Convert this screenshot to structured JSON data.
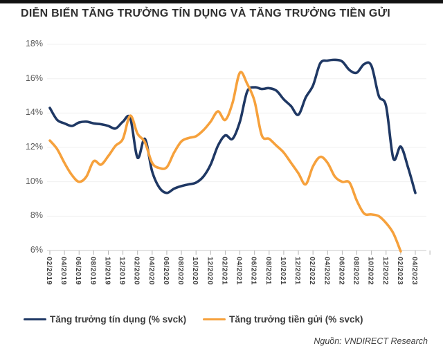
{
  "page": {
    "title": "DIỄN BIẾN TĂNG TRƯỞNG TÍN DỤNG VÀ TĂNG TRƯỞNG TIỀN GỬI",
    "source": "Nguồn: VNDIRECT Research"
  },
  "chart_data": {
    "type": "line",
    "smoothed": true,
    "grid": true,
    "legend_position": "bottom",
    "y_axis": {
      "min": 6,
      "max": 18,
      "step": 2,
      "unit": "%"
    },
    "x_monthly": [
      "02/2019",
      "03/2019",
      "04/2019",
      "05/2019",
      "06/2019",
      "07/2019",
      "08/2019",
      "09/2019",
      "10/2019",
      "11/2019",
      "12/2019",
      "01/2020",
      "02/2020",
      "03/2020",
      "04/2020",
      "05/2020",
      "06/2020",
      "07/2020",
      "08/2020",
      "09/2020",
      "10/2020",
      "11/2020",
      "12/2020",
      "01/2021",
      "02/2021",
      "03/2021",
      "04/2021",
      "05/2021",
      "06/2021",
      "07/2021",
      "08/2021",
      "09/2021",
      "10/2021",
      "11/2021",
      "12/2021",
      "01/2022",
      "02/2022",
      "03/2022",
      "04/2022",
      "05/2022",
      "06/2022",
      "07/2022",
      "08/2022",
      "09/2022",
      "10/2022",
      "11/2022",
      "12/2022",
      "01/2023",
      "02/2023",
      "03/2023",
      "04/2023"
    ],
    "tick_labels": [
      "02/2019",
      "04/2019",
      "06/2019",
      "08/2019",
      "10/2019",
      "12/2019",
      "02/2020",
      "04/2020",
      "06/2020",
      "08/2020",
      "10/2020",
      "12/2020",
      "02/2021",
      "04/2021",
      "06/2021",
      "08/2021",
      "10/2021",
      "12/2021",
      "02/2022",
      "04/2022",
      "06/2022",
      "08/2022",
      "10/2022",
      "12/2022",
      "02/2023",
      "04/2023"
    ],
    "series": [
      {
        "name": "Tăng trưởng tín dụng (% svck)",
        "color": "#1F3864",
        "values": [
          14.3,
          13.6,
          13.4,
          13.25,
          13.45,
          13.5,
          13.4,
          13.35,
          13.25,
          13.1,
          13.5,
          13.7,
          11.4,
          12.5,
          10.6,
          9.65,
          9.35,
          9.6,
          9.75,
          9.85,
          9.95,
          10.3,
          11.0,
          12.1,
          12.7,
          12.5,
          13.5,
          15.25,
          15.5,
          15.4,
          15.45,
          15.3,
          14.8,
          14.4,
          13.9,
          14.9,
          15.6,
          16.9,
          17.05,
          17.1,
          17.0,
          16.5,
          16.35,
          16.85,
          16.75,
          15.0,
          14.4,
          11.35,
          12.05,
          10.85,
          9.35
        ]
      },
      {
        "name": "Tăng trưởng tiền gửi (% svck)",
        "color": "#F6A13C",
        "values": [
          12.4,
          11.9,
          11.1,
          10.4,
          10.0,
          10.3,
          11.2,
          11.0,
          11.5,
          12.1,
          12.5,
          13.85,
          12.8,
          12.3,
          11.1,
          10.8,
          10.85,
          11.7,
          12.35,
          12.55,
          12.65,
          13.0,
          13.5,
          14.1,
          13.6,
          14.6,
          16.35,
          15.7,
          14.7,
          12.7,
          12.5,
          12.1,
          11.7,
          11.1,
          10.5,
          9.85,
          10.9,
          11.45,
          11.1,
          10.3,
          10.0,
          9.95,
          8.9,
          8.15,
          8.1,
          8.0,
          7.6,
          7.0,
          5.95,
          null,
          null
        ]
      }
    ]
  }
}
